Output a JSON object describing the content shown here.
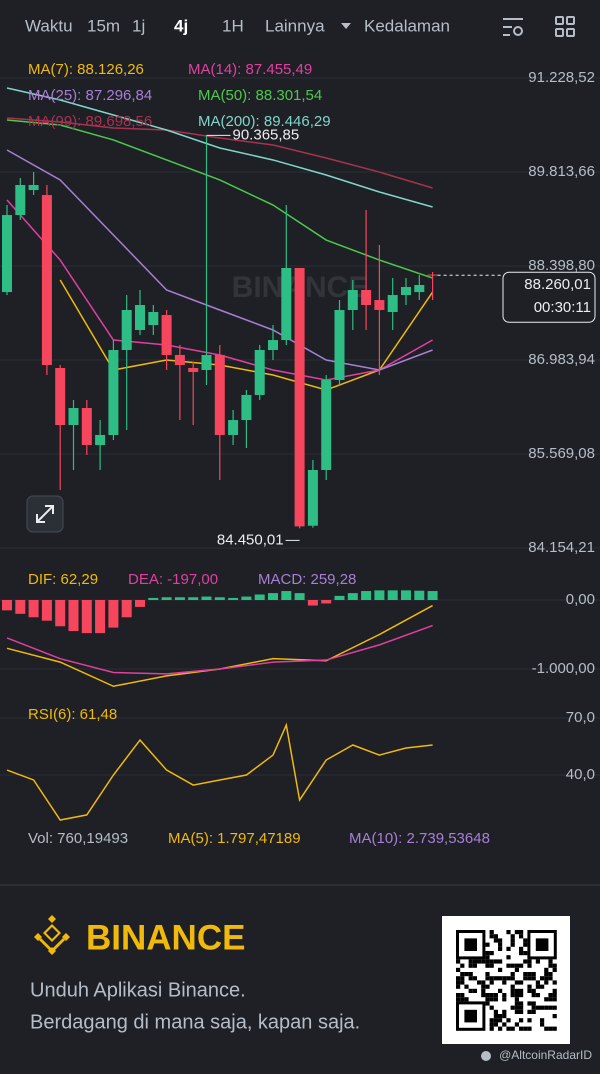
{
  "toolbar": [
    "Waktu",
    "15m",
    "1j",
    "4j",
    "1H",
    "Lainnya",
    "Kedalaman"
  ],
  "chart_data": [
    {
      "type": "candlestick",
      "watermark": "BINANCE",
      "open": [
        88007,
        89166,
        89542,
        89467,
        86864,
        86006,
        86262,
        85705,
        85856,
        87135,
        87436,
        87511,
        87661,
        87060,
        86864,
        86834,
        87060,
        85856,
        86081,
        86458,
        87135,
        87285,
        88369,
        84490,
        85329,
        86683,
        87737,
        88038,
        87887,
        87707,
        87962,
        88007,
        88270
      ],
      "high": [
        89317,
        89723,
        89813,
        89618,
        86909,
        86382,
        86382,
        86081,
        87285,
        87962,
        88038,
        87812,
        87737,
        87210,
        86954,
        90365.85,
        87210,
        86232,
        86533,
        87210,
        87511,
        89317,
        88369,
        85479,
        86758,
        87887,
        88188,
        89242,
        88715,
        88218,
        88218,
        88263,
        88308
      ],
      "low": [
        87962,
        89091,
        89467,
        86758,
        85028,
        85329,
        85555,
        85329,
        85780,
        85931,
        87361,
        87361,
        86834,
        86081,
        86006,
        86608,
        85178,
        85705,
        85660,
        86382,
        86984,
        87210,
        84450.01,
        84460,
        85178,
        86608,
        87436,
        87436,
        86758,
        87436,
        87812,
        87887,
        87887
      ],
      "close": [
        89166,
        89618,
        89618,
        86909,
        86006,
        86262,
        85705,
        85856,
        87135,
        87737,
        87812,
        87707,
        87060,
        86909,
        86804,
        87060,
        85856,
        86081,
        86458,
        87135,
        87285,
        88369,
        84480,
        85329,
        86683,
        87737,
        88038,
        87812,
        87737,
        87962,
        88083,
        88113,
        88260.01
      ],
      "up_color": "#2ebd85",
      "down_color": "#f6465d",
      "series": [
        {
          "name": "MA(7): 88.126,26",
          "color": "#f0b90b",
          "x": [
            4,
            8,
            12,
            16,
            20,
            24,
            28,
            32
          ],
          "values": [
            88188,
            86834,
            86984,
            86909,
            86758,
            86533,
            86834,
            88007
          ]
        },
        {
          "name": "MA(14): 87.455,49",
          "color": "#e040a0",
          "x": [
            0,
            4,
            8,
            12,
            16,
            20,
            24,
            28,
            32
          ],
          "values": [
            89392,
            88489,
            87285,
            87210,
            87060,
            86834,
            86683,
            86834,
            87285
          ]
        },
        {
          "name": "MA(25): 87.296,84",
          "color": "#a77fd4",
          "x": [
            0,
            4,
            8,
            12,
            16,
            20,
            24,
            28,
            32
          ],
          "values": [
            90145,
            89694,
            88866,
            88038,
            87737,
            87436,
            86984,
            86834,
            87135
          ]
        },
        {
          "name": "MA(50): 88.301,54",
          "color": "#4cc94c",
          "x": [
            0,
            4,
            8,
            12,
            16,
            20,
            24,
            28,
            32
          ],
          "values": [
            90597,
            90521,
            90296,
            89995,
            89694,
            89317,
            88790,
            88489,
            88218
          ]
        },
        {
          "name": "MA(99): 89.698,56",
          "color": "#a8324f",
          "x": [
            0,
            4,
            8,
            12,
            16,
            20,
            24,
            28,
            32
          ],
          "values": [
            90627,
            90566,
            90476,
            90446,
            90326,
            90220,
            90025,
            89813,
            89573
          ]
        },
        {
          "name": "MA(200): 89.446,29",
          "color": "#7fd6c9",
          "x": [
            0,
            4,
            8,
            12,
            16,
            20,
            24,
            28,
            32
          ],
          "values": [
            91078,
            90897,
            90672,
            90446,
            90175,
            89995,
            89769,
            89513,
            89287
          ]
        }
      ],
      "ylim": [
        83974.4,
        91469.3
      ],
      "yticks": [
        {
          "value": 91228.52,
          "label": "91.228,52"
        },
        {
          "value": 89813.66,
          "label": "89.813,66"
        },
        {
          "value": 88398.8,
          "label": "88.398,80"
        },
        {
          "value": 86983.94,
          "label": "86.983,94"
        },
        {
          "value": 85569.08,
          "label": "85.569,08"
        },
        {
          "value": 84154.21,
          "label": "84.154,21"
        }
      ],
      "grid": true,
      "annotations": [
        {
          "value": 90365.85,
          "label": "90.365,85"
        },
        {
          "value": 84450.01,
          "label": "84.450,01"
        }
      ],
      "last_price": {
        "value": 88260.01,
        "label": "88.260,01"
      },
      "countdown": "00:30:11"
    },
    {
      "type": "bar",
      "series": [
        {
          "name": "DIF: 62,29",
          "color": "#f0b90b",
          "x": [
            0,
            4,
            8,
            12,
            16,
            20,
            24,
            28,
            32
          ],
          "values": [
            -700,
            -900,
            -1250,
            -1100,
            -1000,
            -850,
            -880,
            -500,
            -80
          ]
        },
        {
          "name": "DEA: -197,00",
          "color": "#e040a0",
          "x": [
            0,
            4,
            8,
            12,
            16,
            20,
            24,
            28,
            32
          ],
          "values": [
            -550,
            -850,
            -1050,
            -1070,
            -1000,
            -900,
            -870,
            -650,
            -370
          ]
        },
        {
          "name": "MACD: 259,28",
          "color": "#a77fd4",
          "values": [
            -150,
            -200,
            -250,
            -300,
            -380,
            -450,
            -480,
            -480,
            -400,
            -250,
            -100,
            30,
            40,
            40,
            40,
            50,
            40,
            30,
            50,
            80,
            100,
            130,
            100,
            -80,
            -50,
            60,
            100,
            130,
            140,
            140,
            140,
            135,
            130
          ]
        }
      ],
      "up_color": "#2ebd85",
      "down_color": "#f6465d",
      "ylim": [
        -1449,
        290
      ],
      "yticks": [
        {
          "value": 0,
          "label": "0,00"
        },
        {
          "value": -1000,
          "label": "-1.000,00"
        }
      ]
    },
    {
      "type": "line",
      "series": [
        {
          "name": "RSI(6): 61,48",
          "color": "#f0b90b",
          "x": [
            0,
            2,
            4,
            6,
            8,
            10,
            12,
            14,
            16,
            18,
            20,
            21,
            22,
            24,
            26,
            28,
            30,
            32
          ],
          "values": [
            42.6,
            37.4,
            16.3,
            19,
            40,
            58.4,
            42.6,
            34.7,
            37.4,
            40,
            50.5,
            66.3,
            26.8,
            47.9,
            55.8,
            50.5,
            54.2,
            55.8
          ]
        }
      ],
      "ylim": [
        12.1,
        79.5
      ],
      "yticks": [
        {
          "value": 70,
          "label": "70,0"
        },
        {
          "value": 40,
          "label": "40,0"
        }
      ]
    }
  ],
  "volume": [
    "Vol: 760,19493",
    "MA(5): 1.797,47189",
    "MA(10): 2.739,53648"
  ],
  "footer": {
    "brand": "BINANCE",
    "lines": [
      "Unduh Aplikasi Binance.",
      "Berdagang di mana saja, kapan saja."
    ],
    "credit": "@AltcoinRadarID"
  }
}
